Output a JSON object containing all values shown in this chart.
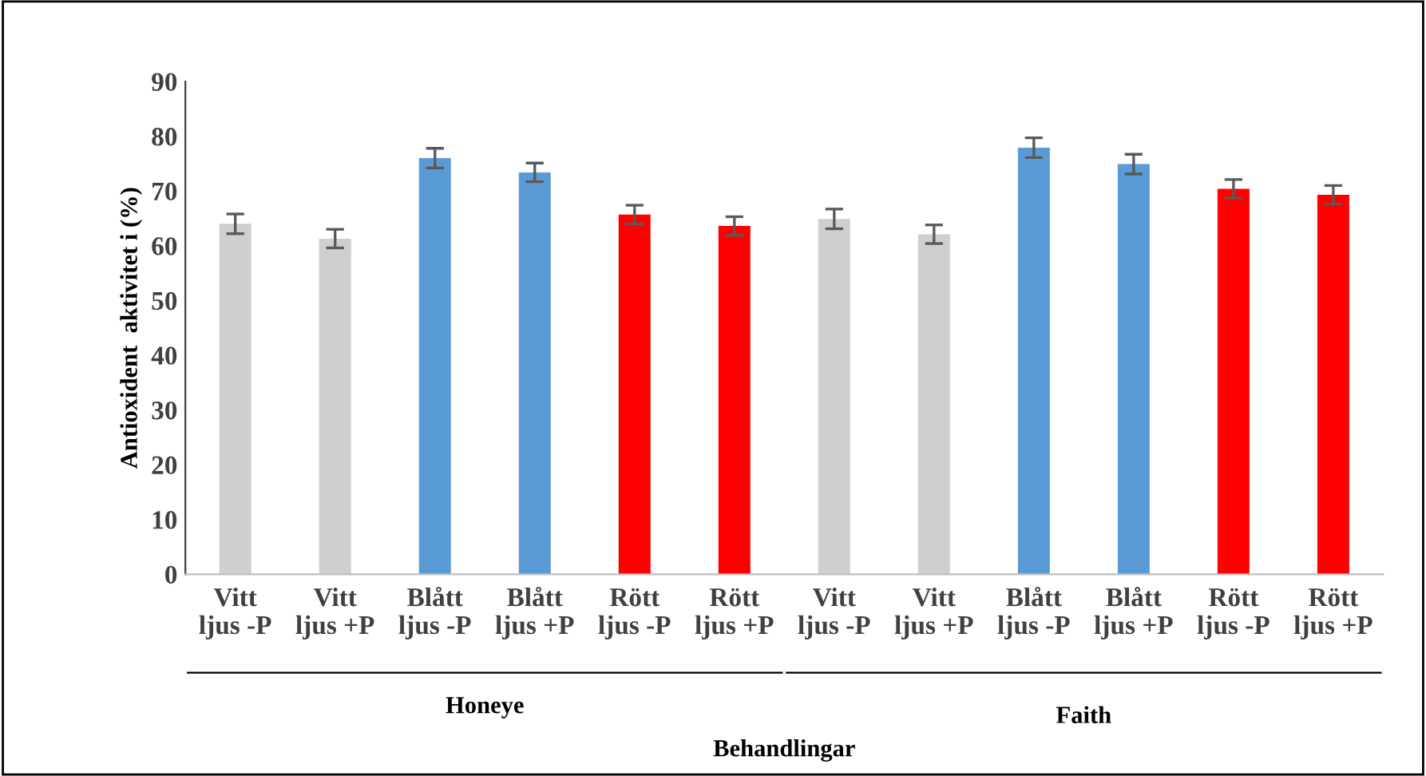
{
  "chart_data": {
    "type": "bar",
    "categories": [
      "Vitt\nljus -P",
      "Vitt\nljus +P",
      "Blått\nljus -P",
      "Blått\nljus +P",
      "Rött\nljus -P",
      "Rött\nljus +P",
      "Vitt\nljus -P",
      "Vitt\nljus +P",
      "Blått\nljus -P",
      "Blått\nljus +P",
      "Rött\nljus -P",
      "Rött\nljus +P"
    ],
    "values": [
      64.0,
      61.3,
      76.0,
      73.4,
      65.7,
      63.6,
      64.9,
      62.1,
      77.9,
      74.9,
      70.4,
      69.3
    ],
    "errors": [
      1.8,
      1.7,
      1.8,
      1.7,
      1.7,
      1.7,
      1.8,
      1.7,
      1.8,
      1.8,
      1.7,
      1.7
    ],
    "colors": [
      "#d0cece",
      "#d0cece",
      "#5b9bd5",
      "#5b9bd5",
      "#ff0000",
      "#ff0000",
      "#d0cece",
      "#d0cece",
      "#5b9bd5",
      "#5b9bd5",
      "#ff0000",
      "#ff0000"
    ],
    "ylim": [
      0,
      90
    ],
    "yticks": [
      0,
      10,
      20,
      30,
      40,
      50,
      60,
      70,
      80,
      90
    ],
    "xlabel": "Behandlingar",
    "ylabel": "Antioxident  aktivitet i (%)",
    "annotations": [
      "Honeye",
      "Faith"
    ],
    "grid": false,
    "legend": false
  }
}
